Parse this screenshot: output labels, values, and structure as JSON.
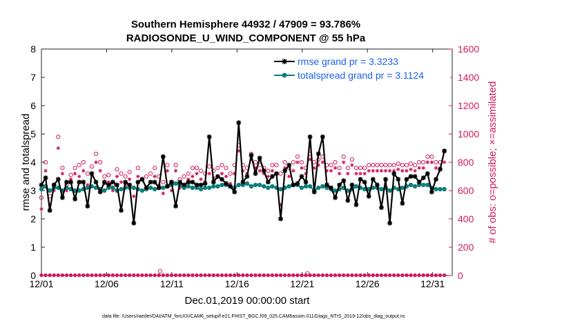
{
  "chart_data": {
    "type": "line",
    "title_line1": "Southern Hemisphere 44932 / 47909 = 93.786%",
    "title_line2": "RADIOSONDE_U_WIND_COMPONENT @ 55 hPa",
    "xlabel": "Dec.01,2019 00:00:00 start",
    "ylabel_left": "rmse and totalspread",
    "ylabel_right": "# of obs: o=possible; ×=assimilated",
    "footnote": "data file: /Users/raeder/DAI/ATM_forcXX/CAM6_setup/f.e21.FHIST_BGC.f09_025.CAM6assim.011/Diags_NTrS_2019-12/obs_diag_output.nc",
    "xlim": [
      1,
      32.5
    ],
    "ylim_left": [
      0,
      8
    ],
    "ylim_right": [
      0,
      1600
    ],
    "x_ticks": [
      1,
      6,
      11,
      16,
      21,
      26,
      31
    ],
    "x_tick_labels": [
      "12/01",
      "12/06",
      "12/11",
      "12/16",
      "12/21",
      "12/26",
      "12/31"
    ],
    "y_left_ticks": [
      "0",
      "1",
      "2",
      "3",
      "4",
      "5",
      "6",
      "7",
      "8"
    ],
    "y_right_ticks": [
      "0",
      "200",
      "400",
      "600",
      "800",
      "1000",
      "1200",
      "1400",
      "1600"
    ],
    "legend_position": "top-right",
    "colors": {
      "rmse": "#000000",
      "spread": "#0d7f7a",
      "obs": "#d1195a",
      "legend_text": "#1a5ff0"
    },
    "series": [
      {
        "name": "rmse grand pr = 3.3233",
        "values": [
          3.2,
          3.45,
          2.3,
          3.2,
          3.4,
          2.75,
          3.3,
          3.3,
          2.7,
          3.3,
          3.3,
          2.45,
          3.6,
          3.3,
          2.95,
          3.3,
          3.2,
          3.3,
          3.2,
          2.3,
          3.3,
          3.2,
          1.85,
          3.3,
          3.4,
          3.1,
          3.3,
          3.3,
          3.1,
          4.2,
          3.15,
          3.3,
          2.45,
          3.3,
          3.2,
          3.3,
          3.3,
          3.2,
          3.2,
          3.25,
          4.9,
          3.3,
          3.5,
          3.4,
          3.25,
          3.15,
          2.95,
          5.4,
          3.3,
          3.5,
          4.25,
          3.6,
          4.15,
          3.7,
          3.3,
          3.5,
          3.6,
          2.0,
          3.7,
          3.9,
          3.2,
          3.25,
          3.5,
          3.3,
          4.9,
          2.95,
          4.3,
          4.9,
          3.2,
          3.1,
          2.75,
          3.2,
          3.35,
          2.65,
          3.2,
          2.5,
          3.4,
          3.3,
          2.8,
          3.4,
          3.2,
          2.4,
          3.4,
          1.85,
          3.6,
          3.4,
          2.55,
          3.4,
          3.5,
          3.5,
          3.3,
          3.45,
          3.6,
          2.95,
          3.4,
          3.75,
          4.4
        ]
      },
      {
        "name": "totalspread grand pr = 3.1124",
        "values": [
          3.05,
          3.15,
          3.0,
          3.1,
          3.1,
          3.0,
          3.1,
          3.05,
          3.0,
          3.0,
          3.05,
          3.1,
          3.15,
          3.1,
          3.05,
          3.0,
          3.1,
          3.1,
          3.0,
          3.05,
          3.1,
          3.1,
          3.1,
          3.05,
          3.0,
          3.05,
          3.1,
          3.05,
          3.1,
          3.1,
          3.15,
          3.2,
          3.25,
          3.2,
          3.1,
          3.15,
          3.1,
          3.1,
          3.05,
          3.1,
          3.1,
          3.15,
          3.15,
          3.2,
          3.2,
          3.15,
          3.1,
          3.2,
          3.2,
          3.25,
          3.15,
          3.2,
          3.2,
          3.15,
          3.1,
          3.15,
          3.1,
          3.05,
          3.1,
          3.15,
          3.2,
          3.2,
          3.1,
          3.15,
          3.15,
          3.0,
          3.1,
          3.15,
          3.1,
          3.05,
          3.0,
          3.05,
          3.1,
          3.0,
          3.05,
          3.15,
          3.1,
          3.05,
          3.05,
          3.1,
          3.1,
          3.05,
          3.1,
          3.0,
          3.1,
          3.05,
          3.1,
          3.15,
          3.2,
          3.15,
          3.2,
          3.2,
          3.2,
          3.1,
          3.05,
          3.05,
          3.05
        ]
      },
      {
        "name": "obs possible",
        "values": [
          550,
          800,
          560,
          640,
          980,
          760,
          640,
          710,
          760,
          780,
          800,
          720,
          770,
          860,
          800,
          700,
          710,
          640,
          750,
          720,
          700,
          730,
          620,
          760,
          680,
          700,
          720,
          760,
          700,
          660,
          780,
          660,
          780,
          680,
          700,
          720,
          760,
          760,
          740,
          720,
          770,
          740,
          760,
          780,
          760,
          720,
          780,
          920,
          780,
          760,
          860,
          800,
          780,
          760,
          740,
          780,
          780,
          720,
          800,
          760,
          800,
          840,
          800,
          760,
          860,
          800,
          820,
          840,
          780,
          780,
          800,
          760,
          840,
          760,
          820,
          760,
          760,
          760,
          780,
          780,
          780,
          780,
          780,
          780,
          780,
          790,
          780,
          780,
          790,
          780,
          800,
          800,
          840,
          840,
          800,
          800,
          880
        ]
      },
      {
        "name": "obs assimilated",
        "values": [
          470,
          740,
          500,
          600,
          900,
          720,
          600,
          680,
          720,
          700,
          740,
          640,
          720,
          800,
          740,
          650,
          660,
          600,
          700,
          660,
          640,
          680,
          560,
          700,
          600,
          620,
          660,
          700,
          640,
          580,
          740,
          600,
          740,
          620,
          640,
          680,
          700,
          720,
          680,
          660,
          720,
          690,
          700,
          720,
          700,
          650,
          720,
          880,
          740,
          720,
          820,
          760,
          740,
          720,
          700,
          740,
          720,
          500,
          760,
          700,
          740,
          800,
          760,
          720,
          820,
          760,
          780,
          800,
          740,
          740,
          760,
          720,
          800,
          720,
          780,
          720,
          720,
          720,
          740,
          740,
          740,
          740,
          740,
          740,
          740,
          750,
          740,
          740,
          750,
          740,
          760,
          760,
          800,
          800,
          760,
          760,
          800
        ]
      },
      {
        "name": "obs possible lower",
        "values": [
          2,
          2,
          2,
          2,
          2,
          2,
          2,
          2,
          2,
          2,
          2,
          2,
          2,
          2,
          2,
          2,
          2,
          2,
          2,
          2,
          2,
          2,
          2,
          2,
          2,
          2,
          2,
          2,
          2,
          2,
          2,
          2,
          2,
          2,
          2,
          2,
          2,
          2,
          2,
          2,
          2,
          2,
          2,
          2,
          2,
          2,
          2,
          2,
          2,
          2,
          2,
          2,
          2,
          2,
          2,
          2,
          2,
          2,
          2,
          2,
          2,
          2,
          2,
          2,
          2,
          2,
          2,
          2,
          2,
          2,
          2,
          2,
          2,
          2,
          2,
          2,
          2,
          2,
          2,
          2,
          2,
          2,
          2,
          2,
          2,
          2,
          2,
          2,
          2,
          2,
          2,
          2,
          2,
          2,
          2,
          2,
          2
        ]
      }
    ],
    "special_points": [
      {
        "x": 10.1,
        "value": 30
      },
      {
        "x": 21.4,
        "value": 15
      }
    ]
  }
}
